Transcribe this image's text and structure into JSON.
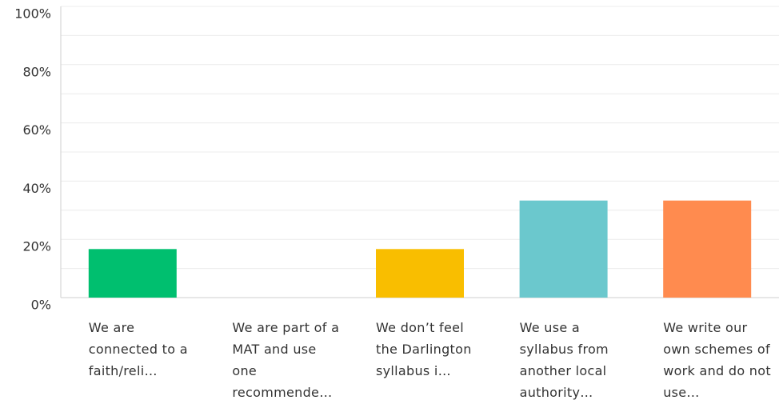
{
  "chart_data": {
    "type": "bar",
    "categories": [
      "We are connected to a faith/reli…",
      "We are part of a MAT and use one recommende…",
      "We don’t feel the Darlington syllabus i…",
      "We use a syllabus from another local authority…",
      "We write our own schemes of work and do not use…"
    ],
    "values": [
      16.67,
      0,
      16.67,
      33.33,
      33.33
    ],
    "colors": [
      "#00bf6f",
      "#a1b4c4",
      "#f9be00",
      "#6bc8cd",
      "#ff8b4f"
    ],
    "ylim": [
      0,
      100
    ],
    "yticks": [
      {
        "value": 0,
        "label": "0%"
      },
      {
        "value": 20,
        "label": "20%"
      },
      {
        "value": 40,
        "label": "40%"
      },
      {
        "value": 60,
        "label": "60%"
      },
      {
        "value": 80,
        "label": "80%"
      },
      {
        "value": 100,
        "label": "100%"
      }
    ],
    "minor_yticks": [
      10,
      30,
      50,
      70,
      90
    ],
    "grid": true
  }
}
